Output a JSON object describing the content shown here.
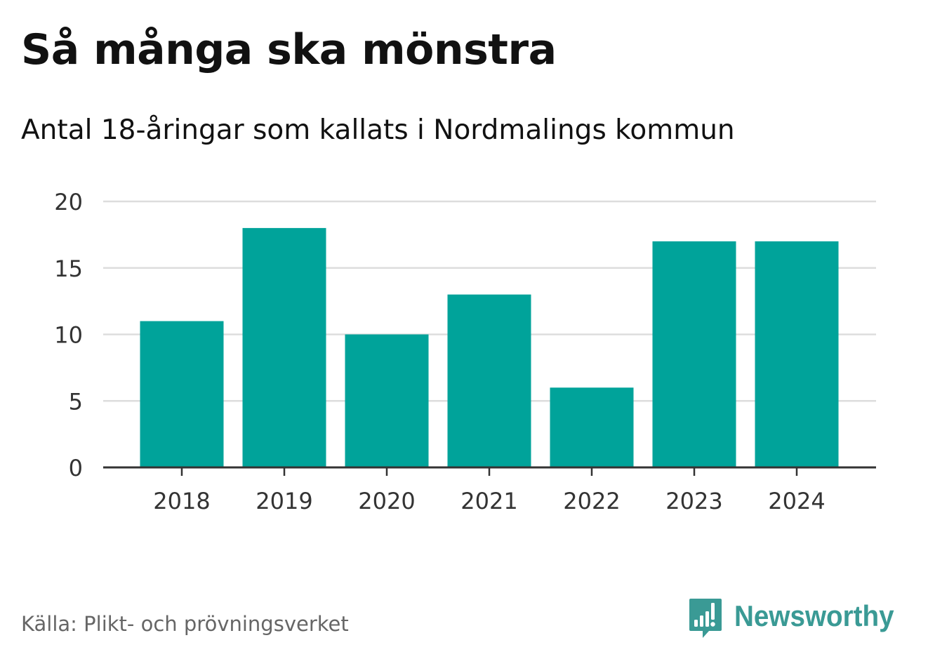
{
  "header": {
    "title": "Så många ska mönstra",
    "subtitle": "Antal 18-åringar som kallats i Nordmalings kommun"
  },
  "footer": {
    "source": "Källa: Plikt- och prövningsverket",
    "brand_name": "Newsworthy",
    "brand_icon": "bar-chart-speech-bubble-icon"
  },
  "colors": {
    "bar": "#00a39a",
    "grid": "#dddddd",
    "axis": "#333333",
    "tick_text": "#333333",
    "brand": "#3a9a95"
  },
  "chart_data": {
    "type": "bar",
    "title": "Så många ska mönstra",
    "subtitle": "Antal 18-åringar som kallats i Nordmalings kommun",
    "categories": [
      "2018",
      "2019",
      "2020",
      "2021",
      "2022",
      "2023",
      "2024"
    ],
    "values": [
      11,
      18,
      10,
      13,
      6,
      17,
      17
    ],
    "xlabel": "",
    "ylabel": "",
    "ylim": [
      0,
      20
    ],
    "yticks": [
      0,
      5,
      10,
      15,
      20
    ],
    "ytick_labels": [
      "0",
      "5",
      "10",
      "15",
      "20"
    ],
    "grid": true,
    "legend": "none"
  }
}
